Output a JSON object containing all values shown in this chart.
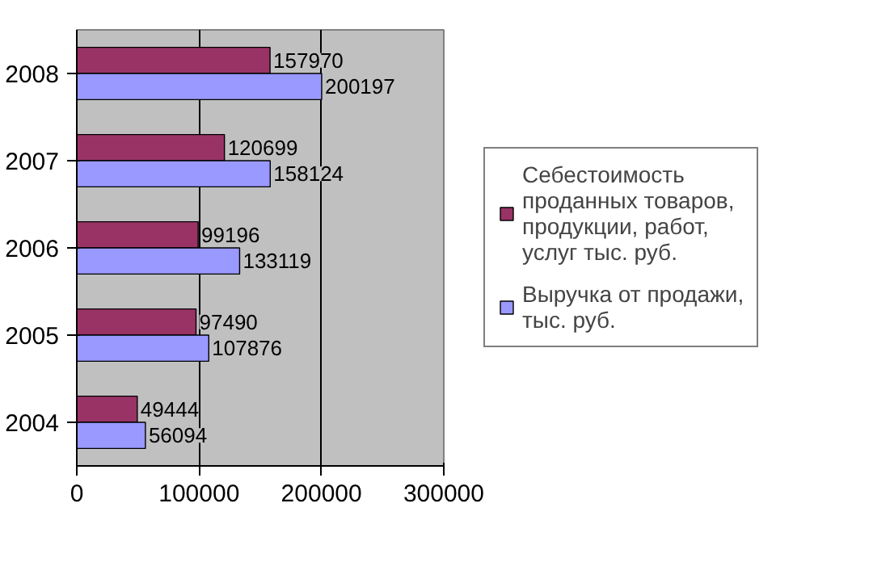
{
  "chart_data": {
    "type": "bar",
    "orientation": "horizontal",
    "categories": [
      "2008",
      "2007",
      "2006",
      "2005",
      "2004"
    ],
    "series": [
      {
        "name": "Себестоимость проданных товаров, продукции, работ, услуг тыс. руб.",
        "color": "#993366",
        "values": [
          157970,
          120699,
          99196,
          97490,
          49444
        ]
      },
      {
        "name": "Выручка от продажи, тыс. руб.",
        "color": "#9999ff",
        "values": [
          200197,
          158124,
          133119,
          107876,
          56094
        ]
      }
    ],
    "xlim": [
      0,
      300000
    ],
    "xticks": [
      0,
      100000,
      200000,
      300000
    ],
    "grid": "x",
    "legend": "right",
    "data_labels": true
  }
}
